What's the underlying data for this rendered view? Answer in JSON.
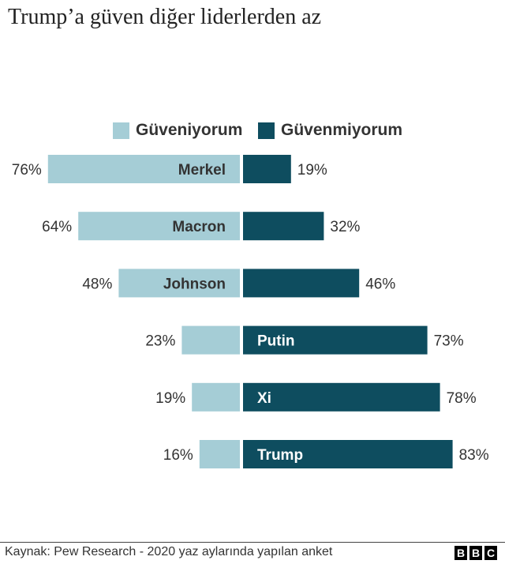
{
  "title": "Trump’a güven diğer liderlerden az",
  "legend": [
    {
      "label": "Güveniyorum",
      "color": "#a5cdd6"
    },
    {
      "label": "Güvenmiyorum",
      "color": "#0e4d5f"
    }
  ],
  "chart_data": {
    "type": "bar",
    "orientation": "horizontal-diverging",
    "categories": [
      "Merkel",
      "Macron",
      "Johnson",
      "Putin",
      "Xi",
      "Trump"
    ],
    "series": [
      {
        "name": "Güveniyorum",
        "values": [
          76,
          64,
          48,
          23,
          19,
          16
        ],
        "color": "#a5cdd6"
      },
      {
        "name": "Güvenmiyorum",
        "values": [
          19,
          32,
          46,
          73,
          78,
          83
        ],
        "color": "#0e4d5f"
      }
    ],
    "value_suffix": "%",
    "legend_position": "top"
  },
  "source": "Kaynak: Pew Research - 2020 yaz aylarında yapılan anket",
  "logo": [
    "B",
    "B",
    "C"
  ]
}
